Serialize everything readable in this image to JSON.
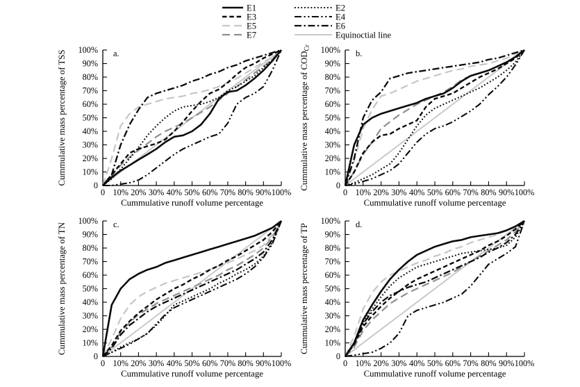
{
  "figure": {
    "background": "#ffffff",
    "text_color": "#000000",
    "axis_color": "#000000"
  },
  "legend": {
    "items": [
      {
        "id": "E1",
        "label": "E1",
        "color": "#0a0a0a",
        "dash": "none",
        "width": 2.6
      },
      {
        "id": "E2",
        "label": "E2",
        "color": "#0a0a0a",
        "dash": "1.8 2.9",
        "width": 2.1
      },
      {
        "id": "E3",
        "label": "E3",
        "color": "#0a0a0a",
        "dash": "6.5 3.8",
        "width": 2.4
      },
      {
        "id": "E4",
        "label": "E4",
        "color": "#0a0a0a",
        "dash": "10 3.5 2.2 3.5 2.2 3.5",
        "width": 2.1
      },
      {
        "id": "E5",
        "label": "E5",
        "color": "#c6c6c6",
        "dash": "11 6",
        "width": 2.2
      },
      {
        "id": "E6",
        "label": "E6",
        "color": "#0a0a0a",
        "dash": "10 3.5 2.4 3.5",
        "width": 2.3
      },
      {
        "id": "E7",
        "label": "E7",
        "color": "#8f8f8f",
        "dash": "11 6",
        "width": 2.2
      },
      {
        "id": "EQ",
        "label": "Equinoctial line",
        "color": "#c9c9c9",
        "dash": "none",
        "width": 2.0
      }
    ],
    "columns": [
      [
        "E1",
        "E3",
        "E5",
        "E7"
      ],
      [
        "E2",
        "E4",
        "E6",
        "EQ"
      ]
    ]
  },
  "chart_data": [
    {
      "id": "a",
      "panel_label": "a.",
      "type": "line",
      "title": "",
      "xlabel": "Cummulative runoff volume percentage",
      "ylabel": "Cummulative mass percentage of TSS",
      "ylabel_sub": "",
      "xlim": [
        0,
        100
      ],
      "ylim": [
        0,
        100
      ],
      "grid": false,
      "x_tick_labels": [
        "0",
        "10%",
        "20%",
        "30%",
        "40%",
        "50%",
        "60%",
        "70%",
        "80%",
        "90%",
        "100%"
      ],
      "y_tick_labels": [
        "0",
        "10%",
        "20%",
        "30%",
        "40%",
        "50%",
        "60%",
        "70%",
        "80%",
        "90%",
        "100%"
      ],
      "x": [
        0,
        5,
        10,
        15,
        20,
        25,
        30,
        35,
        40,
        45,
        50,
        55,
        60,
        65,
        70,
        75,
        80,
        85,
        90,
        95,
        100
      ],
      "series": [
        {
          "name": "E1",
          "values": [
            0,
            6,
            11,
            15,
            19,
            23,
            27,
            32,
            36,
            37,
            40,
            45,
            53,
            64,
            69,
            70,
            74,
            79,
            85,
            92,
            100
          ]
        },
        {
          "name": "E2",
          "values": [
            0,
            5,
            12,
            20,
            28,
            37,
            44,
            50,
            55,
            58,
            59,
            60,
            62,
            65,
            70,
            73,
            77,
            81,
            87,
            93,
            100
          ]
        },
        {
          "name": "E3",
          "values": [
            0,
            8,
            16,
            24,
            27,
            29,
            31,
            34,
            40,
            47,
            55,
            62,
            68,
            71,
            76,
            82,
            87,
            90,
            94,
            97,
            100
          ]
        },
        {
          "name": "E4",
          "values": [
            0,
            0,
            1,
            2,
            4,
            8,
            13,
            18,
            23,
            27,
            30,
            33,
            36,
            38,
            46,
            60,
            65,
            68,
            73,
            85,
            100
          ]
        },
        {
          "name": "E5",
          "values": [
            0,
            20,
            44,
            53,
            58,
            60,
            62,
            64,
            65,
            66,
            68,
            69,
            71,
            73,
            76,
            79,
            83,
            87,
            91,
            95,
            100
          ]
        },
        {
          "name": "E6",
          "values": [
            0,
            8,
            30,
            45,
            56,
            65,
            68,
            70,
            72,
            74,
            77,
            79,
            82,
            84,
            87,
            89,
            92,
            94,
            96,
            98,
            100
          ]
        },
        {
          "name": "E7",
          "values": [
            0,
            7,
            15,
            21,
            26,
            31,
            36,
            40,
            43,
            46,
            50,
            54,
            58,
            63,
            68,
            73,
            78,
            83,
            88,
            93,
            100
          ]
        },
        {
          "name": "Equinoctial line",
          "values": [
            0,
            5,
            10,
            15,
            20,
            25,
            30,
            35,
            40,
            45,
            50,
            55,
            60,
            65,
            70,
            75,
            80,
            85,
            90,
            95,
            100
          ]
        }
      ]
    },
    {
      "id": "b",
      "panel_label": "b.",
      "type": "line",
      "title": "",
      "xlabel": "Cummulative runoff volume percentage",
      "ylabel": "Cummulative mass percentage of COD",
      "ylabel_sub": "Cr",
      "xlim": [
        0,
        100
      ],
      "ylim": [
        0,
        100
      ],
      "grid": false,
      "x_tick_labels": [
        "0",
        "10%",
        "20%",
        "30%",
        "40%",
        "50%",
        "60%",
        "70%",
        "80%",
        "90%",
        "100%"
      ],
      "y_tick_labels": [
        "0",
        "10%",
        "20%",
        "30%",
        "40%",
        "50%",
        "60%",
        "70%",
        "80%",
        "90%",
        "100%"
      ],
      "x": [
        0,
        5,
        10,
        15,
        20,
        25,
        30,
        35,
        40,
        45,
        50,
        55,
        60,
        65,
        70,
        75,
        80,
        85,
        90,
        95,
        100
      ],
      "series": [
        {
          "name": "E1",
          "values": [
            0,
            30,
            45,
            50,
            53,
            55,
            57,
            59,
            61,
            64,
            66,
            68,
            72,
            77,
            81,
            83,
            85,
            88,
            91,
            95,
            100
          ]
        },
        {
          "name": "E2",
          "values": [
            0,
            2,
            5,
            8,
            12,
            16,
            24,
            34,
            44,
            52,
            57,
            60,
            63,
            66,
            69,
            72,
            76,
            80,
            85,
            91,
            100
          ]
        },
        {
          "name": "E3",
          "values": [
            0,
            10,
            24,
            32,
            37,
            38,
            42,
            45,
            48,
            58,
            64,
            66,
            68,
            72,
            76,
            80,
            83,
            86,
            90,
            94,
            100
          ]
        },
        {
          "name": "E4",
          "values": [
            0,
            1,
            3,
            5,
            8,
            11,
            16,
            24,
            32,
            38,
            42,
            44,
            47,
            51,
            55,
            60,
            67,
            73,
            80,
            89,
            100
          ]
        },
        {
          "name": "E5",
          "values": [
            0,
            18,
            42,
            56,
            66,
            68,
            71,
            74,
            77,
            79,
            81,
            83,
            85,
            86,
            88,
            89,
            90,
            92,
            94,
            97,
            100
          ]
        },
        {
          "name": "E6",
          "values": [
            0,
            20,
            50,
            63,
            69,
            79,
            81,
            83,
            84,
            85,
            86,
            87,
            88,
            89,
            90,
            91,
            93,
            94,
            96,
            98,
            100
          ]
        },
        {
          "name": "E7",
          "values": [
            0,
            10,
            23,
            32,
            42,
            47,
            52,
            56,
            60,
            63,
            66,
            69,
            73,
            78,
            81,
            83,
            85,
            88,
            91,
            95,
            100
          ]
        },
        {
          "name": "Equinoctial line",
          "values": [
            0,
            5,
            10,
            15,
            20,
            25,
            30,
            35,
            40,
            45,
            50,
            55,
            60,
            65,
            70,
            75,
            80,
            85,
            90,
            95,
            100
          ]
        }
      ]
    },
    {
      "id": "c",
      "panel_label": "c.",
      "type": "line",
      "title": "",
      "xlabel": "Cummulative runoff volume percentage",
      "ylabel": "Cummulative mass percentage of TN",
      "ylabel_sub": "",
      "xlim": [
        0,
        100
      ],
      "ylim": [
        0,
        100
      ],
      "grid": false,
      "x_tick_labels": [
        "0",
        "10%",
        "20%",
        "30%",
        "40%",
        "50%",
        "60%",
        "70%",
        "80%",
        "90%",
        "100%"
      ],
      "y_tick_labels": [
        "0",
        "10%",
        "20%",
        "30%",
        "40%",
        "50%",
        "60%",
        "70%",
        "80%",
        "90%",
        "100%"
      ],
      "x": [
        0,
        5,
        10,
        15,
        20,
        25,
        30,
        35,
        40,
        45,
        50,
        55,
        60,
        65,
        70,
        75,
        80,
        85,
        90,
        95,
        100
      ],
      "series": [
        {
          "name": "E1",
          "values": [
            0,
            38,
            50,
            57,
            61,
            64,
            66,
            69,
            71,
            73,
            75,
            77,
            79,
            81,
            83,
            85,
            87,
            89,
            92,
            95,
            100
          ]
        },
        {
          "name": "E2",
          "values": [
            0,
            3,
            7,
            10,
            13,
            17,
            23,
            30,
            38,
            41,
            44,
            47,
            50,
            54,
            57,
            61,
            64,
            68,
            74,
            84,
            100
          ]
        },
        {
          "name": "E3",
          "values": [
            0,
            8,
            19,
            26,
            32,
            37,
            42,
            46,
            50,
            53,
            57,
            60,
            64,
            67,
            71,
            74,
            78,
            82,
            86,
            92,
            100
          ]
        },
        {
          "name": "E4",
          "values": [
            0,
            3,
            6,
            9,
            13,
            17,
            24,
            31,
            36,
            39,
            42,
            45,
            48,
            51,
            54,
            57,
            61,
            66,
            73,
            83,
            100
          ]
        },
        {
          "name": "E5",
          "values": [
            0,
            13,
            28,
            38,
            44,
            48,
            51,
            54,
            56,
            58,
            60,
            62,
            64,
            67,
            69,
            72,
            75,
            78,
            82,
            90,
            100
          ]
        },
        {
          "name": "E6",
          "values": [
            0,
            6,
            16,
            23,
            28,
            33,
            37,
            40,
            43,
            46,
            49,
            52,
            55,
            58,
            61,
            64,
            68,
            72,
            77,
            86,
            100
          ]
        },
        {
          "name": "E7",
          "values": [
            0,
            7,
            18,
            25,
            31,
            35,
            39,
            42,
            45,
            48,
            51,
            54,
            57,
            60,
            64,
            67,
            71,
            75,
            80,
            88,
            100
          ]
        },
        {
          "name": "Equinoctial line",
          "values": [
            0,
            5,
            10,
            15,
            20,
            25,
            30,
            35,
            40,
            45,
            50,
            55,
            60,
            65,
            70,
            75,
            80,
            85,
            90,
            95,
            100
          ]
        }
      ]
    },
    {
      "id": "d",
      "panel_label": "d.",
      "type": "line",
      "title": "",
      "xlabel": "Cummulative runoff volume percentage",
      "ylabel": "Cummulative mass percentage of TP",
      "ylabel_sub": "",
      "xlim": [
        0,
        100
      ],
      "ylim": [
        0,
        100
      ],
      "grid": false,
      "x_tick_labels": [
        "0",
        "10%",
        "20%",
        "30%",
        "40%",
        "50%",
        "60%",
        "70%",
        "80%",
        "90%",
        "100%"
      ],
      "y_tick_labels": [
        "0",
        "10%",
        "20%",
        "30%",
        "40%",
        "50%",
        "60%",
        "70%",
        "80%",
        "90%",
        "100%"
      ],
      "x": [
        0,
        5,
        10,
        15,
        20,
        25,
        30,
        35,
        40,
        45,
        50,
        55,
        60,
        65,
        70,
        75,
        80,
        85,
        90,
        95,
        100
      ],
      "series": [
        {
          "name": "E1",
          "values": [
            0,
            10,
            27,
            38,
            48,
            57,
            64,
            70,
            75,
            78,
            81,
            83,
            85,
            86,
            88,
            89,
            90,
            91,
            93,
            96,
            100
          ]
        },
        {
          "name": "E2",
          "values": [
            0,
            10,
            25,
            35,
            44,
            52,
            58,
            62,
            66,
            68,
            70,
            72,
            74,
            76,
            77,
            78,
            79,
            80,
            82,
            88,
            100
          ]
        },
        {
          "name": "E3",
          "values": [
            0,
            9,
            22,
            30,
            37,
            43,
            48,
            53,
            57,
            60,
            63,
            66,
            69,
            72,
            75,
            78,
            82,
            85,
            89,
            94,
            100
          ]
        },
        {
          "name": "E4",
          "values": [
            0,
            1,
            2,
            3,
            6,
            10,
            17,
            30,
            34,
            36,
            38,
            40,
            43,
            46,
            52,
            60,
            68,
            72,
            76,
            81,
            100
          ]
        },
        {
          "name": "E5",
          "values": [
            0,
            15,
            35,
            47,
            55,
            60,
            63,
            66,
            69,
            71,
            74,
            76,
            79,
            81,
            84,
            86,
            88,
            90,
            93,
            96,
            100
          ]
        },
        {
          "name": "E6",
          "values": [
            0,
            9,
            24,
            33,
            40,
            45,
            48,
            51,
            53,
            55,
            58,
            61,
            64,
            67,
            70,
            73,
            77,
            80,
            84,
            90,
            100
          ]
        },
        {
          "name": "E7",
          "values": [
            0,
            7,
            19,
            27,
            33,
            39,
            43,
            47,
            50,
            53,
            56,
            59,
            62,
            66,
            70,
            74,
            78,
            82,
            86,
            92,
            100
          ]
        },
        {
          "name": "Equinoctial line",
          "values": [
            0,
            5,
            10,
            15,
            20,
            25,
            30,
            35,
            40,
            45,
            50,
            55,
            60,
            65,
            70,
            75,
            80,
            85,
            90,
            95,
            100
          ]
        }
      ]
    }
  ]
}
